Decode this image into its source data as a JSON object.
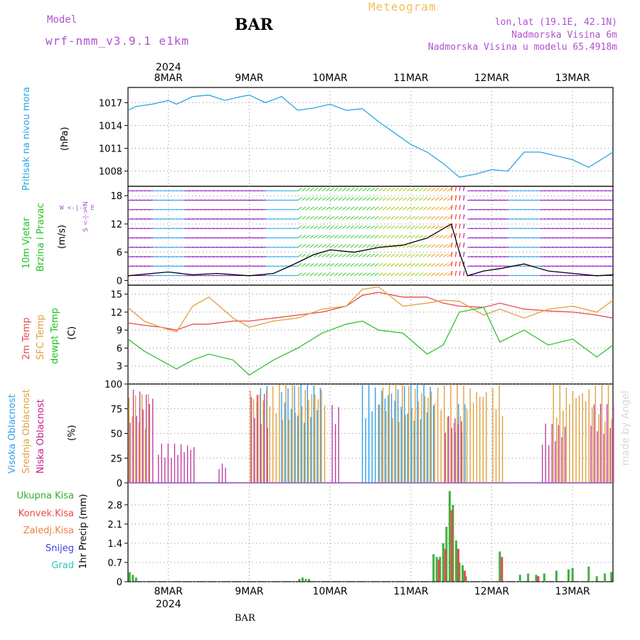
{
  "header": {
    "model_label": "Model",
    "model_name": "wrf-nmm_v3.9.1 e1km",
    "station": "BAR",
    "title": "Meteogram",
    "coords": "lon,lat (19.1E, 42.1N)",
    "elevation": "Nadmorska Visina 6m",
    "model_elevation": "Nadmorska Visina u modelu 65.4918m",
    "footer_station": "BAR",
    "credit": "made by Angel"
  },
  "x_axis": {
    "year": "2024",
    "ticks": [
      "8MAR",
      "9MAR",
      "10MAR",
      "11MAR",
      "12MAR",
      "13MAR"
    ]
  },
  "colors": {
    "pressure": "#2aa5e0",
    "t2m": "#e84a4a",
    "sfc": "#e0a040",
    "dewpt": "#30c030",
    "high_cloud": "#30a0e8",
    "mid_cloud": "#e0a040",
    "low_cloud": "#c040a0",
    "total_precip": "#40b040",
    "conv_precip": "#e84a4a",
    "wind_calm": "#9010d0",
    "wind_strong": "#ff2020"
  },
  "panels": {
    "pressure": {
      "label": "Pritisak na nivou mora",
      "unit": "(hPa)"
    },
    "wind": {
      "label1": "10m Vjetar",
      "label2": "Brzina i Pravac",
      "unit": "(m/s)",
      "compass": "W <-|-> E",
      "compass_v": "S <-|-> N"
    },
    "temp": {
      "label1": "2m Temp",
      "label2": "SFC Temp",
      "label3": "dewpt Temp",
      "unit": "(C)"
    },
    "cloud": {
      "label1": "Visoka Oblacnost",
      "label2": "Srednja Oblacnost",
      "label3": "Niska Oblacnost",
      "unit": "(%)"
    },
    "precip": {
      "unit": "1hr Precip (mm)",
      "legend": [
        "Ukupna Kisa",
        "Konvek.Kisa",
        "Zaledj.Kisa",
        "Snijeg",
        "Grad"
      ],
      "legend_colors": [
        "#30b030",
        "#e84a4a",
        "#f08040",
        "#4040e0",
        "#30c0c0"
      ]
    }
  },
  "chart_data": [
    {
      "type": "line",
      "name": "pressure",
      "x_unit": "day of March 2024",
      "ylim": [
        1006,
        1019
      ],
      "yticks": [
        1008,
        1011,
        1014,
        1017
      ],
      "x": [
        7.5,
        7.6,
        7.8,
        8.0,
        8.1,
        8.3,
        8.5,
        8.7,
        8.9,
        9.0,
        9.2,
        9.4,
        9.6,
        9.8,
        10.0,
        10.2,
        10.4,
        10.6,
        10.8,
        11.0,
        11.2,
        11.4,
        11.6,
        11.8,
        12.0,
        12.2,
        12.4,
        12.6,
        12.8,
        13.0,
        13.2,
        13.5
      ],
      "y": [
        1016.0,
        1016.5,
        1016.8,
        1017.3,
        1016.8,
        1017.8,
        1018.0,
        1017.3,
        1017.8,
        1018.0,
        1017.0,
        1017.8,
        1016.0,
        1016.3,
        1016.8,
        1016.0,
        1016.2,
        1014.5,
        1013.0,
        1011.5,
        1010.5,
        1009.0,
        1007.2,
        1007.6,
        1008.2,
        1008.0,
        1010.5,
        1010.5,
        1010.0,
        1009.5,
        1008.5,
        1010.5
      ]
    },
    {
      "type": "line",
      "name": "wind",
      "ylim": [
        -1,
        20
      ],
      "yticks": [
        0,
        6,
        12,
        18
      ],
      "x": [
        7.5,
        7.8,
        8.0,
        8.3,
        8.6,
        9.0,
        9.3,
        9.5,
        9.8,
        10.0,
        10.3,
        10.6,
        10.9,
        11.2,
        11.4,
        11.5,
        11.6,
        11.7,
        11.9,
        12.1,
        12.4,
        12.7,
        13.0,
        13.3,
        13.5
      ],
      "y": [
        1.0,
        1.5,
        1.8,
        1.2,
        1.5,
        1.0,
        1.5,
        3.0,
        5.5,
        6.5,
        6.0,
        7.0,
        7.5,
        9.0,
        11.0,
        12.0,
        6.0,
        1.0,
        2.0,
        2.5,
        3.5,
        2.0,
        1.5,
        1.0,
        1.2
      ]
    },
    {
      "type": "line",
      "name": "temperature",
      "ylim": [
        0,
        16.5
      ],
      "yticks": [
        3,
        6,
        9,
        12,
        15
      ],
      "series": [
        {
          "name": "2m Temp",
          "x": [
            7.5,
            7.7,
            7.9,
            8.1,
            8.3,
            8.5,
            8.8,
            9.0,
            9.3,
            9.6,
            9.9,
            10.2,
            10.4,
            10.6,
            10.9,
            11.2,
            11.4,
            11.6,
            11.9,
            12.1,
            12.4,
            12.7,
            13.0,
            13.3,
            13.5
          ],
          "y": [
            10.2,
            9.8,
            9.5,
            9.0,
            10.0,
            10.0,
            10.5,
            10.5,
            11.0,
            11.5,
            12.0,
            13.0,
            14.8,
            15.3,
            14.5,
            14.5,
            13.5,
            13.0,
            12.8,
            13.5,
            12.5,
            12.2,
            12.0,
            11.5,
            11.0
          ]
        },
        {
          "name": "SFC Temp",
          "x": [
            7.5,
            7.7,
            7.9,
            8.1,
            8.3,
            8.5,
            8.8,
            9.0,
            9.3,
            9.6,
            9.9,
            10.2,
            10.4,
            10.6,
            10.9,
            11.2,
            11.4,
            11.6,
            11.9,
            12.1,
            12.4,
            12.7,
            13.0,
            13.3,
            13.5
          ],
          "y": [
            12.8,
            10.5,
            9.5,
            8.7,
            13.0,
            14.5,
            11.0,
            9.5,
            10.5,
            11.0,
            12.5,
            13.0,
            15.8,
            16.2,
            13.0,
            13.5,
            14.0,
            13.8,
            11.5,
            12.5,
            11.0,
            12.5,
            13.0,
            12.0,
            14.0
          ]
        },
        {
          "name": "dewpt Temp",
          "x": [
            7.5,
            7.7,
            7.9,
            8.1,
            8.3,
            8.5,
            8.8,
            9.0,
            9.3,
            9.6,
            9.9,
            10.2,
            10.4,
            10.6,
            10.9,
            11.2,
            11.4,
            11.6,
            11.9,
            12.1,
            12.4,
            12.7,
            13.0,
            13.3,
            13.5
          ],
          "y": [
            7.5,
            5.5,
            4.0,
            2.5,
            4.0,
            5.0,
            4.0,
            1.5,
            4.0,
            6.0,
            8.5,
            10.0,
            10.5,
            9.0,
            8.5,
            5.0,
            6.5,
            12.0,
            12.8,
            7.0,
            9.0,
            6.5,
            7.5,
            4.5,
            6.5
          ]
        }
      ]
    },
    {
      "type": "bar",
      "name": "cloud cover",
      "ylim": [
        0,
        100
      ],
      "yticks": [
        0,
        25,
        50,
        75,
        100
      ],
      "series": [
        {
          "name": "Visoka Oblacnost",
          "intervals": [
            [
              9.1,
              9.25,
              100
            ],
            [
              9.4,
              9.9,
              100
            ],
            [
              10.4,
              11.3,
              100
            ],
            [
              11.55,
              11.7,
              80
            ]
          ]
        },
        {
          "name": "Srednja Oblacnost",
          "intervals": [
            [
              7.5,
              7.75,
              90
            ],
            [
              9.0,
              9.95,
              100
            ],
            [
              10.6,
              11.95,
              100
            ],
            [
              12.0,
              12.15,
              100
            ],
            [
              12.75,
              13.5,
              100
            ]
          ]
        },
        {
          "name": "Niska Oblacnost",
          "intervals": [
            [
              7.5,
              7.8,
              95
            ],
            [
              7.85,
              8.3,
              40
            ],
            [
              8.6,
              8.7,
              20
            ],
            [
              9.0,
              9.2,
              90
            ],
            [
              10.0,
              10.1,
              80
            ],
            [
              11.4,
              11.6,
              70
            ],
            [
              12.6,
              12.9,
              60
            ],
            [
              13.2,
              13.5,
              80
            ]
          ]
        }
      ]
    },
    {
      "type": "bar",
      "name": "precipitation",
      "ylim": [
        0,
        3.6
      ],
      "yticks": [
        0,
        0.7,
        1.4,
        2.1,
        2.8
      ],
      "series": [
        {
          "name": "Ukupna Kisa",
          "x": [
            7.52,
            7.56,
            7.6,
            9.62,
            9.66,
            9.7,
            9.74,
            11.28,
            11.32,
            11.36,
            11.4,
            11.44,
            11.48,
            11.52,
            11.56,
            11.6,
            11.64,
            11.68,
            12.1,
            12.35,
            12.45,
            12.55,
            12.65,
            12.8,
            12.95,
            13.0,
            13.2,
            13.3,
            13.4,
            13.48
          ],
          "values": [
            0.35,
            0.25,
            0.15,
            0.1,
            0.15,
            0.1,
            0.1,
            1.0,
            0.9,
            0.9,
            1.4,
            2.0,
            3.3,
            2.8,
            1.5,
            0.7,
            0.6,
            0.2,
            1.1,
            0.25,
            0.3,
            0.25,
            0.3,
            0.4,
            0.45,
            0.5,
            0.55,
            0.2,
            0.3,
            0.35
          ]
        },
        {
          "name": "Konvek.Kisa",
          "x": [
            11.32,
            11.4,
            11.48,
            11.56,
            11.64,
            12.1,
            12.55
          ],
          "values": [
            0.8,
            1.2,
            2.6,
            1.2,
            0.4,
            0.9,
            0.2
          ]
        }
      ]
    }
  ]
}
